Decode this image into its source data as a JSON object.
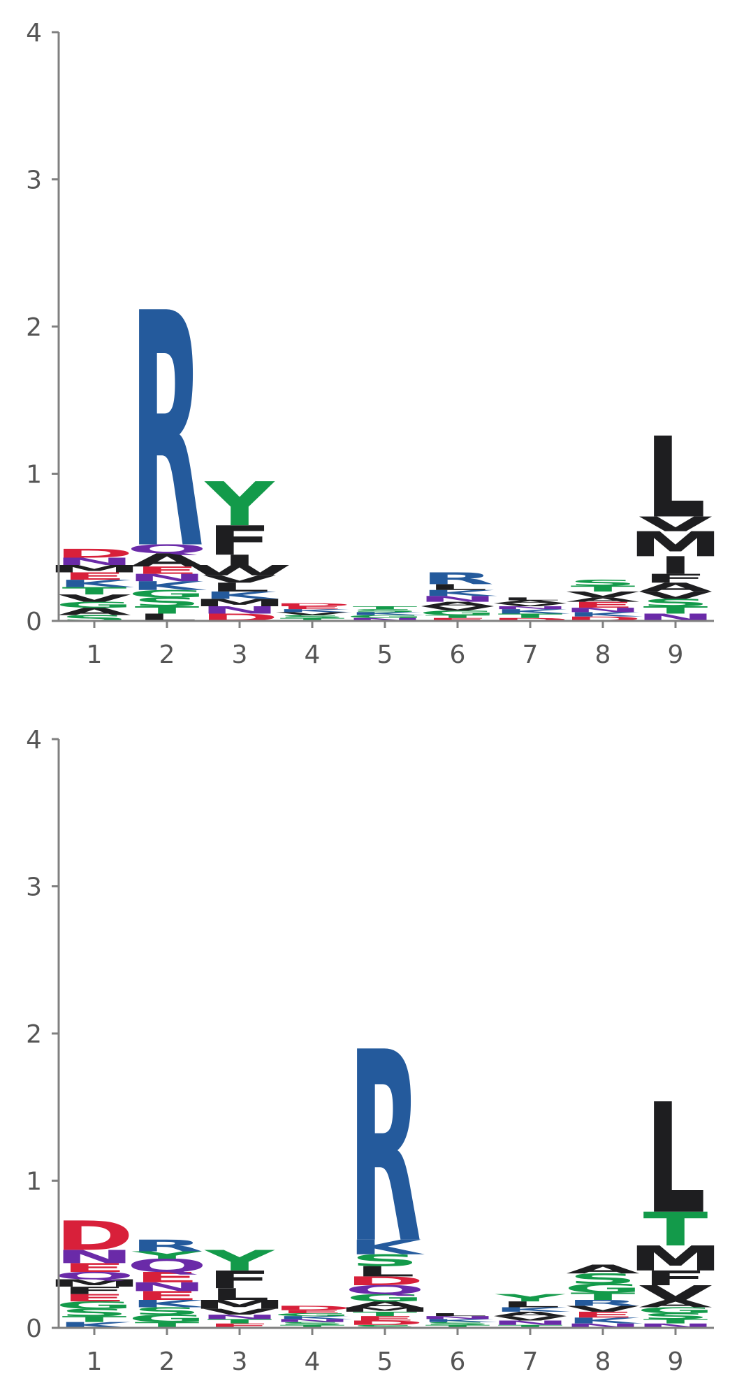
{
  "colors": {
    "R": "#245a9c",
    "K": "#245a9c",
    "H": "#245a9c",
    "D": "#d8203a",
    "E": "#d8203a",
    "N": "#6a2aa8",
    "Q": "#6a2aa8",
    "S": "#139a4a",
    "T": "#139a4a",
    "Y": "#139a4a",
    "G": "#139a4a",
    "C": "#139a4a",
    "A": "#1e1e20",
    "V": "#1e1e20",
    "L": "#1e1e20",
    "I": "#1e1e20",
    "M": "#1e1e20",
    "F": "#1e1e20",
    "W": "#1e1e20",
    "P": "#1e1e20"
  },
  "chart_data": [
    {
      "type": "sequence_logo",
      "x_ticks": [
        "1",
        "2",
        "3",
        "4",
        "5",
        "6",
        "7",
        "8",
        "9"
      ],
      "y_ticks": [
        "0",
        "1",
        "2",
        "3",
        "4"
      ],
      "ylim": [
        0,
        4
      ],
      "grid": false,
      "positions": [
        {
          "x": "1",
          "stack": [
            [
              "S",
              0.04
            ],
            [
              "A",
              0.05
            ],
            [
              "G",
              0.04
            ],
            [
              "V",
              0.05
            ],
            [
              "T",
              0.05
            ],
            [
              "K",
              0.05
            ],
            [
              "E",
              0.05
            ],
            [
              "M",
              0.05
            ],
            [
              "N",
              0.05
            ],
            [
              "D",
              0.06
            ]
          ]
        },
        {
          "x": "2",
          "stack": [
            [
              "L",
              0.05
            ],
            [
              "T",
              0.05
            ],
            [
              "S",
              0.06
            ],
            [
              "G",
              0.05
            ],
            [
              "K",
              0.06
            ],
            [
              "N",
              0.05
            ],
            [
              "E",
              0.05
            ],
            [
              "A",
              0.09
            ],
            [
              "Q",
              0.06
            ],
            [
              "R",
              1.6
            ]
          ]
        },
        {
          "x": "3",
          "stack": [
            [
              "D",
              0.05
            ],
            [
              "N",
              0.05
            ],
            [
              "M",
              0.05
            ],
            [
              "K",
              0.05
            ],
            [
              "L",
              0.06
            ],
            [
              "V",
              0.05
            ],
            [
              "W",
              0.07
            ],
            [
              "I",
              0.07
            ],
            [
              "F",
              0.2
            ],
            [
              "Y",
              0.3
            ]
          ]
        },
        {
          "x": "4",
          "stack": [
            [
              "T",
              0.02
            ],
            [
              "S",
              0.02
            ],
            [
              "V",
              0.02
            ],
            [
              "K",
              0.02
            ],
            [
              "E",
              0.02
            ],
            [
              "D",
              0.02
            ]
          ]
        },
        {
          "x": "5",
          "stack": [
            [
              "N",
              0.02
            ],
            [
              "G",
              0.02
            ],
            [
              "K",
              0.02
            ],
            [
              "S",
              0.02
            ],
            [
              "T",
              0.02
            ]
          ]
        },
        {
          "x": "6",
          "stack": [
            [
              "E",
              0.02
            ],
            [
              "T",
              0.02
            ],
            [
              "G",
              0.03
            ],
            [
              "V",
              0.03
            ],
            [
              "A",
              0.03
            ],
            [
              "N",
              0.04
            ],
            [
              "K",
              0.04
            ],
            [
              "L",
              0.04
            ],
            [
              "R",
              0.08
            ]
          ]
        },
        {
          "x": "7",
          "stack": [
            [
              "D",
              0.02
            ],
            [
              "T",
              0.03
            ],
            [
              "K",
              0.03
            ],
            [
              "N",
              0.02
            ],
            [
              "V",
              0.02
            ],
            [
              "A",
              0.02
            ],
            [
              "L",
              0.02
            ]
          ]
        },
        {
          "x": "8",
          "stack": [
            [
              "D",
              0.03
            ],
            [
              "K",
              0.03
            ],
            [
              "N",
              0.03
            ],
            [
              "E",
              0.04
            ],
            [
              "A",
              0.03
            ],
            [
              "V",
              0.04
            ],
            [
              "T",
              0.04
            ],
            [
              "S",
              0.04
            ]
          ]
        },
        {
          "x": "9",
          "stack": [
            [
              "N",
              0.05
            ],
            [
              "T",
              0.05
            ],
            [
              "S",
              0.05
            ],
            [
              "V",
              0.05
            ],
            [
              "A",
              0.06
            ],
            [
              "F",
              0.06
            ],
            [
              "I",
              0.12
            ],
            [
              "M",
              0.17
            ],
            [
              "V",
              0.1
            ],
            [
              "L",
              0.55
            ]
          ]
        }
      ]
    },
    {
      "type": "sequence_logo",
      "x_ticks": [
        "1",
        "2",
        "3",
        "4",
        "5",
        "6",
        "7",
        "8",
        "9"
      ],
      "y_ticks": [
        "0",
        "1",
        "2",
        "3",
        "4"
      ],
      "ylim": [
        0,
        4
      ],
      "grid": false,
      "positions": [
        {
          "x": "1",
          "stack": [
            [
              "K",
              0.04
            ],
            [
              "T",
              0.04
            ],
            [
              "S",
              0.05
            ],
            [
              "G",
              0.05
            ],
            [
              "E",
              0.05
            ],
            [
              "F",
              0.05
            ],
            [
              "M",
              0.05
            ],
            [
              "Q",
              0.05
            ],
            [
              "E",
              0.06
            ],
            [
              "N",
              0.09
            ],
            [
              "D",
              0.2
            ]
          ]
        },
        {
          "x": "2",
          "stack": [
            [
              "T",
              0.04
            ],
            [
              "G",
              0.05
            ],
            [
              "S",
              0.05
            ],
            [
              "K",
              0.05
            ],
            [
              "E",
              0.06
            ],
            [
              "N",
              0.06
            ],
            [
              "E",
              0.07
            ],
            [
              "Q",
              0.09
            ],
            [
              "Y",
              0.05
            ],
            [
              "R",
              0.08
            ]
          ]
        },
        {
          "x": "3",
          "stack": [
            [
              "E",
              0.03
            ],
            [
              "T",
              0.03
            ],
            [
              "N",
              0.03
            ],
            [
              "V",
              0.04
            ],
            [
              "M",
              0.06
            ],
            [
              "L",
              0.08
            ],
            [
              "F",
              0.12
            ],
            [
              "Y",
              0.14
            ]
          ]
        },
        {
          "x": "4",
          "stack": [
            [
              "T",
              0.02
            ],
            [
              "S",
              0.02
            ],
            [
              "N",
              0.02
            ],
            [
              "K",
              0.02
            ],
            [
              "G",
              0.02
            ],
            [
              "E",
              0.02
            ],
            [
              "D",
              0.03
            ]
          ]
        },
        {
          "x": "5",
          "stack": [
            [
              "S",
              0.02
            ],
            [
              "D",
              0.03
            ],
            [
              "E",
              0.03
            ],
            [
              "T",
              0.03
            ],
            [
              "M",
              0.03
            ],
            [
              "A",
              0.04
            ],
            [
              "G",
              0.05
            ],
            [
              "Q",
              0.06
            ],
            [
              "D",
              0.06
            ],
            [
              "L",
              0.07
            ],
            [
              "S",
              0.08
            ],
            [
              "K",
              0.1
            ],
            [
              "R",
              1.3
            ]
          ]
        },
        {
          "x": "6",
          "stack": [
            [
              "T",
              0.02
            ],
            [
              "S",
              0.02
            ],
            [
              "K",
              0.02
            ],
            [
              "N",
              0.02
            ],
            [
              "L",
              0.02
            ]
          ]
        },
        {
          "x": "7",
          "stack": [
            [
              "T",
              0.02
            ],
            [
              "N",
              0.03
            ],
            [
              "V",
              0.03
            ],
            [
              "A",
              0.03
            ],
            [
              "K",
              0.03
            ],
            [
              "L",
              0.04
            ],
            [
              "Y",
              0.05
            ]
          ]
        },
        {
          "x": "8",
          "stack": [
            [
              "N",
              0.03
            ],
            [
              "K",
              0.04
            ],
            [
              "E",
              0.04
            ],
            [
              "V",
              0.04
            ],
            [
              "R",
              0.04
            ],
            [
              "T",
              0.05
            ],
            [
              "G",
              0.06
            ],
            [
              "S",
              0.07
            ],
            [
              "A",
              0.06
            ]
          ]
        },
        {
          "x": "9",
          "stack": [
            [
              "N",
              0.03
            ],
            [
              "T",
              0.03
            ],
            [
              "S",
              0.04
            ],
            [
              "G",
              0.04
            ],
            [
              "A",
              0.05
            ],
            [
              "V",
              0.1
            ],
            [
              "F",
              0.1
            ],
            [
              "M",
              0.17
            ],
            [
              "T",
              0.23
            ],
            [
              "L",
              0.75
            ]
          ]
        }
      ]
    }
  ]
}
